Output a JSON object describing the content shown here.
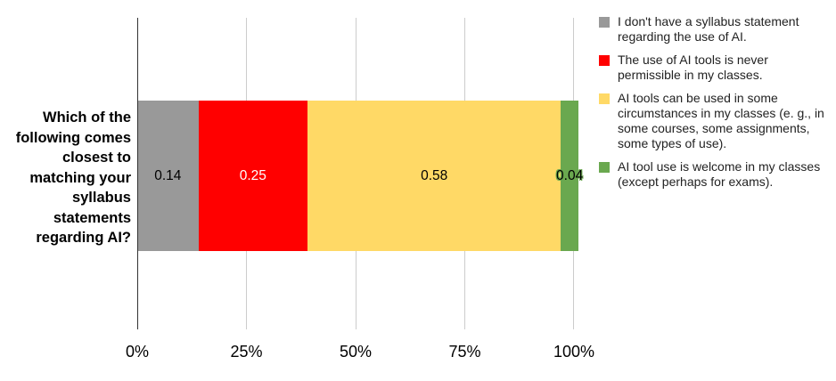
{
  "chart_data": {
    "type": "bar",
    "orientation": "horizontal",
    "stacked": true,
    "normalized": true,
    "title": "",
    "categories": [
      "Which of the following comes closest to matching your syllabus statements regarding AI?"
    ],
    "series": [
      {
        "name": "I don't have a syllabus statement regarding the use of AI.",
        "values": [
          0.14
        ],
        "color": "#999999",
        "label": "0.14",
        "label_color": "#000000"
      },
      {
        "name": "The use of AI tools is never permissible in my classes.",
        "values": [
          0.25
        ],
        "color": "#ff0000",
        "label": "0.25",
        "label_color": "#ffffff"
      },
      {
        "name": "AI tools can be used in some circumstances in my classes (e. g., in some courses, some assignments, some types of use).",
        "values": [
          0.58
        ],
        "color": "#ffd966",
        "label": "0.58",
        "label_color": "#000000"
      },
      {
        "name": "AI tool use is welcome in my classes (except perhaps for exams).",
        "values": [
          0.04
        ],
        "color": "#6aa84f",
        "label": "0.04",
        "label_color": "#000000"
      }
    ],
    "xlabel": "",
    "ylabel": "Which of the following comes closest to matching your syllabus statements regarding AI?",
    "xlim": [
      0,
      1
    ],
    "xticks": [
      "0%",
      "25%",
      "50%",
      "75%",
      "100%"
    ],
    "grid": true,
    "legend_position": "right"
  },
  "ylabel_text": "Which of the following comes closest to matching your syllabus statements regarding AI?",
  "legend": [
    {
      "label": "I don't have a syllabus statement regarding the use of AI.",
      "color": "#999999"
    },
    {
      "label": "The use of AI tools is never permissible in my classes.",
      "color": "#ff0000"
    },
    {
      "label": "AI tools can be used in some circumstances in my classes (e. g., in some courses, some assignments, some types of use).",
      "color": "#ffd966"
    },
    {
      "label": "AI tool use is welcome in my classes (except perhaps for exams).",
      "color": "#6aa84f"
    }
  ],
  "xticks": [
    "0%",
    "25%",
    "50%",
    "75%",
    "100%"
  ]
}
